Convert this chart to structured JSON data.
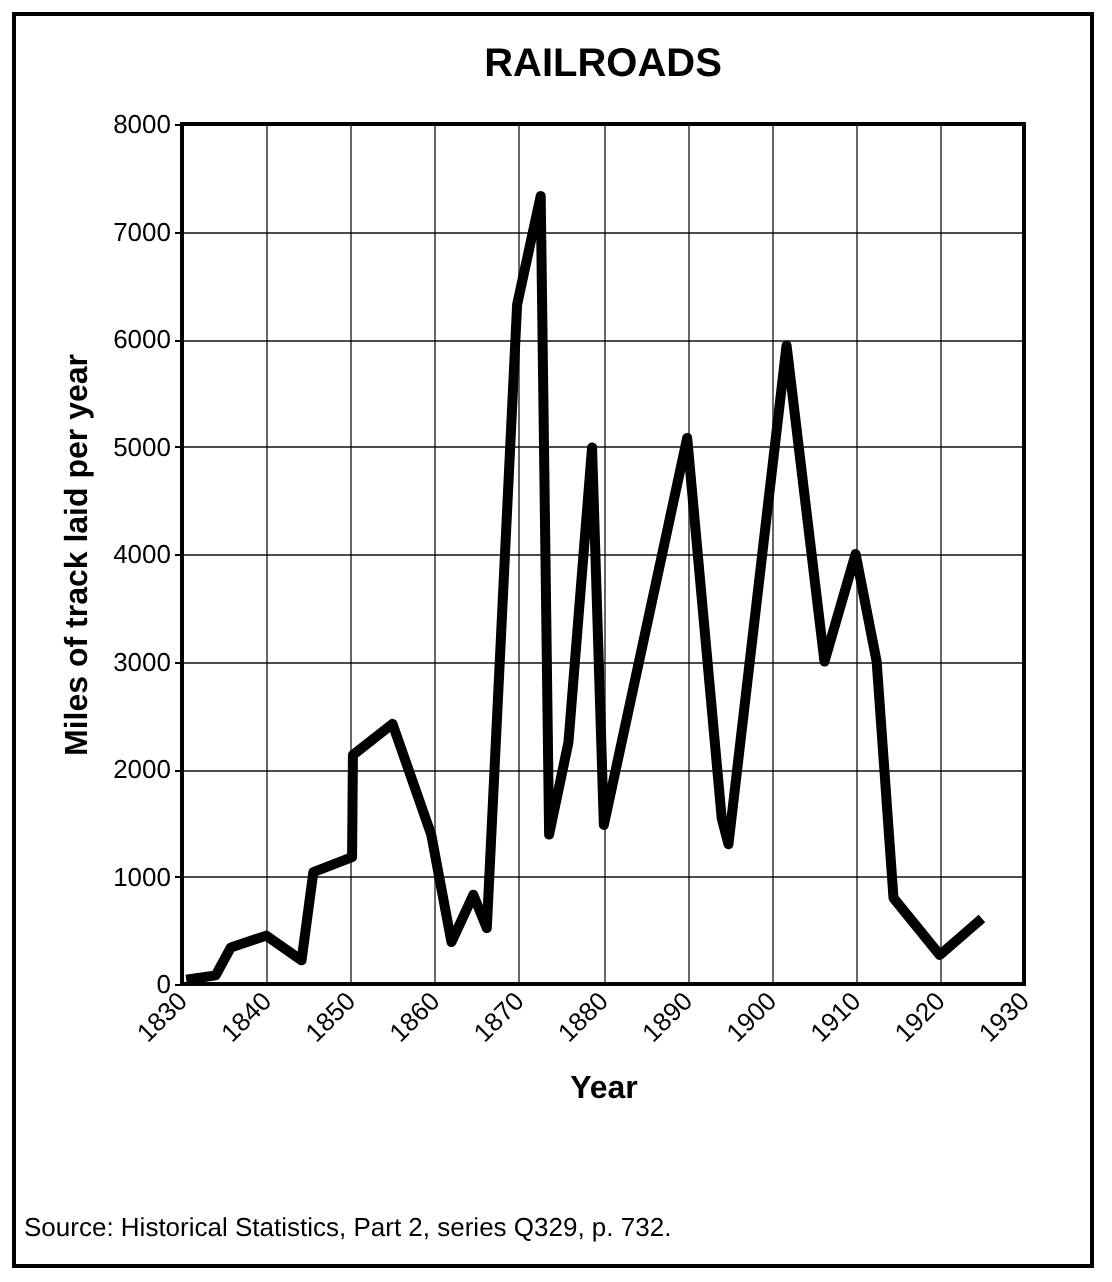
{
  "chart_data": {
    "type": "line",
    "title": "RAILROADS",
    "xlabel": "Year",
    "ylabel": "Miles of track laid per year",
    "x": [
      1830.5,
      1834,
      1835.8,
      1840,
      1844.2,
      1845.6,
      1850.2,
      1850.3,
      1855,
      1859.6,
      1862,
      1864.6,
      1866.2,
      1869.8,
      1872.6,
      1873.6,
      1875.9,
      1878.7,
      1880.1,
      1890,
      1894.1,
      1894.9,
      1901.8,
      1906.3,
      1910,
      1912.5,
      1914.5,
      1920,
      1925
    ],
    "series": [
      {
        "color": "#000000",
        "values": [
          40,
          80,
          340,
          450,
          220,
          1040,
          1180,
          2130,
          2420,
          1390,
          390,
          830,
          520,
          6320,
          7330,
          1390,
          2250,
          4990,
          1480,
          5080,
          1540,
          1300,
          5940,
          3000,
          4000,
          3000,
          800,
          270,
          610
        ]
      }
    ],
    "xlim": [
      1830,
      1930
    ],
    "xticks": [
      1830,
      1840,
      1850,
      1860,
      1870,
      1880,
      1890,
      1900,
      1910,
      1920,
      1930
    ],
    "ylim": [
      0,
      8000
    ],
    "yticks": [
      0,
      1000,
      2000,
      3000,
      4000,
      5000,
      6000,
      7000,
      8000
    ],
    "grid": true,
    "marker": "none",
    "line_style": "solid",
    "annotations": [
      "Source: Historical Statistics, Part 2, series Q329, p. 732."
    ]
  }
}
